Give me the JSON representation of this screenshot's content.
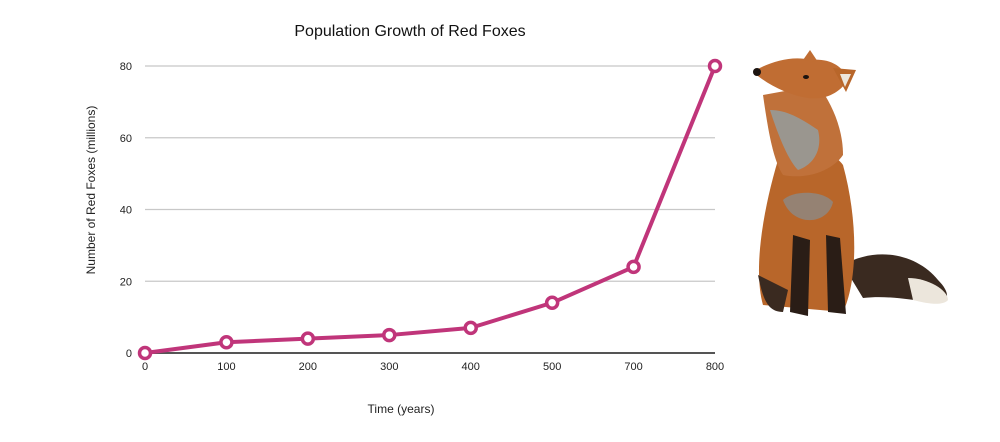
{
  "chart_data": {
    "type": "line",
    "title": "Population Growth of Red Foxes",
    "xlabel": "Time (years)",
    "ylabel": "Number of Red Foxes (millions)",
    "categories": [
      "0",
      "100",
      "200",
      "300",
      "400",
      "500",
      "700",
      "800"
    ],
    "series": [
      {
        "name": "Red Foxes",
        "values": [
          0,
          3,
          4,
          5,
          7,
          14,
          24,
          80
        ]
      }
    ],
    "ylim": [
      0,
      80
    ],
    "yticks": [
      "0",
      "20",
      "40",
      "60",
      "80"
    ],
    "grid": true,
    "legend": "none",
    "line_color": "#c0357a",
    "grid_color": "#c8c8c8",
    "axis_color": "#555555"
  },
  "image": {
    "name": "red-fox-photo",
    "colors": {
      "fur": "#b8662a",
      "dark": "#2a1d16",
      "light": "#e9e4dc",
      "gray": "#8c8a86"
    }
  }
}
